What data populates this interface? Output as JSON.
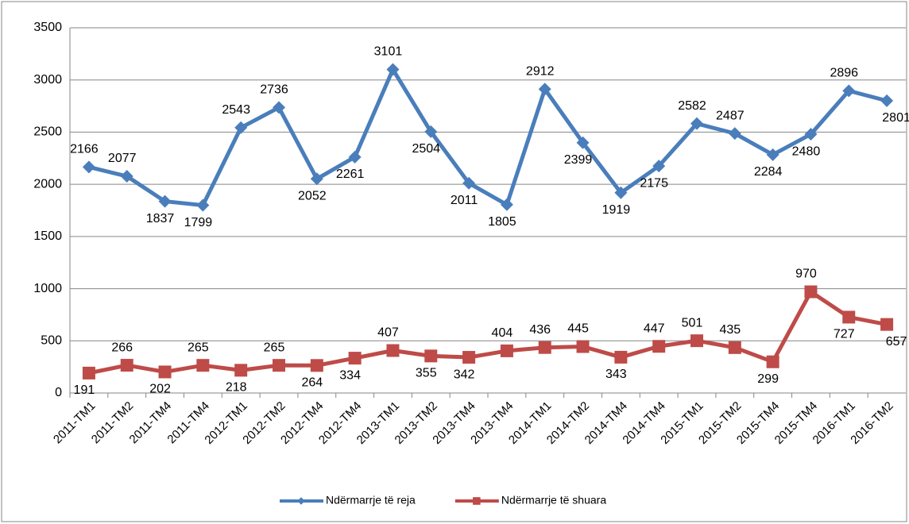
{
  "chart_data": {
    "type": "line",
    "categories": [
      "2011-TM1",
      "2011-TM2",
      "2011-TM4",
      "2011-TM4",
      "2012-TM1",
      "2012-TM2",
      "2012-TM4",
      "2012-TM4",
      "2013-TM1",
      "2013-TM2",
      "2013-TM4",
      "2013-TM4",
      "2014-TM1",
      "2014-TM2",
      "2014-TM4",
      "2014-TM4",
      "2015-TM1",
      "2015-TM2",
      "2015-TM4",
      "2015-TM4",
      "2016-TM1",
      "2016-TM2"
    ],
    "series": [
      {
        "name": "Ndërmarrje të reja",
        "color": "#4a7ebb",
        "marker": "diamond",
        "values": [
          2166,
          2077,
          1837,
          1799,
          2543,
          2736,
          2052,
          2261,
          3101,
          2504,
          2011,
          1805,
          2912,
          2399,
          1919,
          2175,
          2582,
          2487,
          2284,
          2480,
          2896,
          2801
        ]
      },
      {
        "name": "Ndërmarrje të shuara",
        "color": "#be4b48",
        "marker": "square",
        "values": [
          191,
          266,
          202,
          265,
          218,
          265,
          264,
          334,
          407,
          355,
          342,
          404,
          436,
          445,
          343,
          447,
          501,
          435,
          299,
          970,
          727,
          657
        ]
      }
    ],
    "ylim": [
      0,
      3500
    ],
    "yticks": [
      0,
      500,
      1000,
      1500,
      2000,
      2500,
      3000,
      3500
    ],
    "grid": true,
    "legend": "bottom"
  }
}
